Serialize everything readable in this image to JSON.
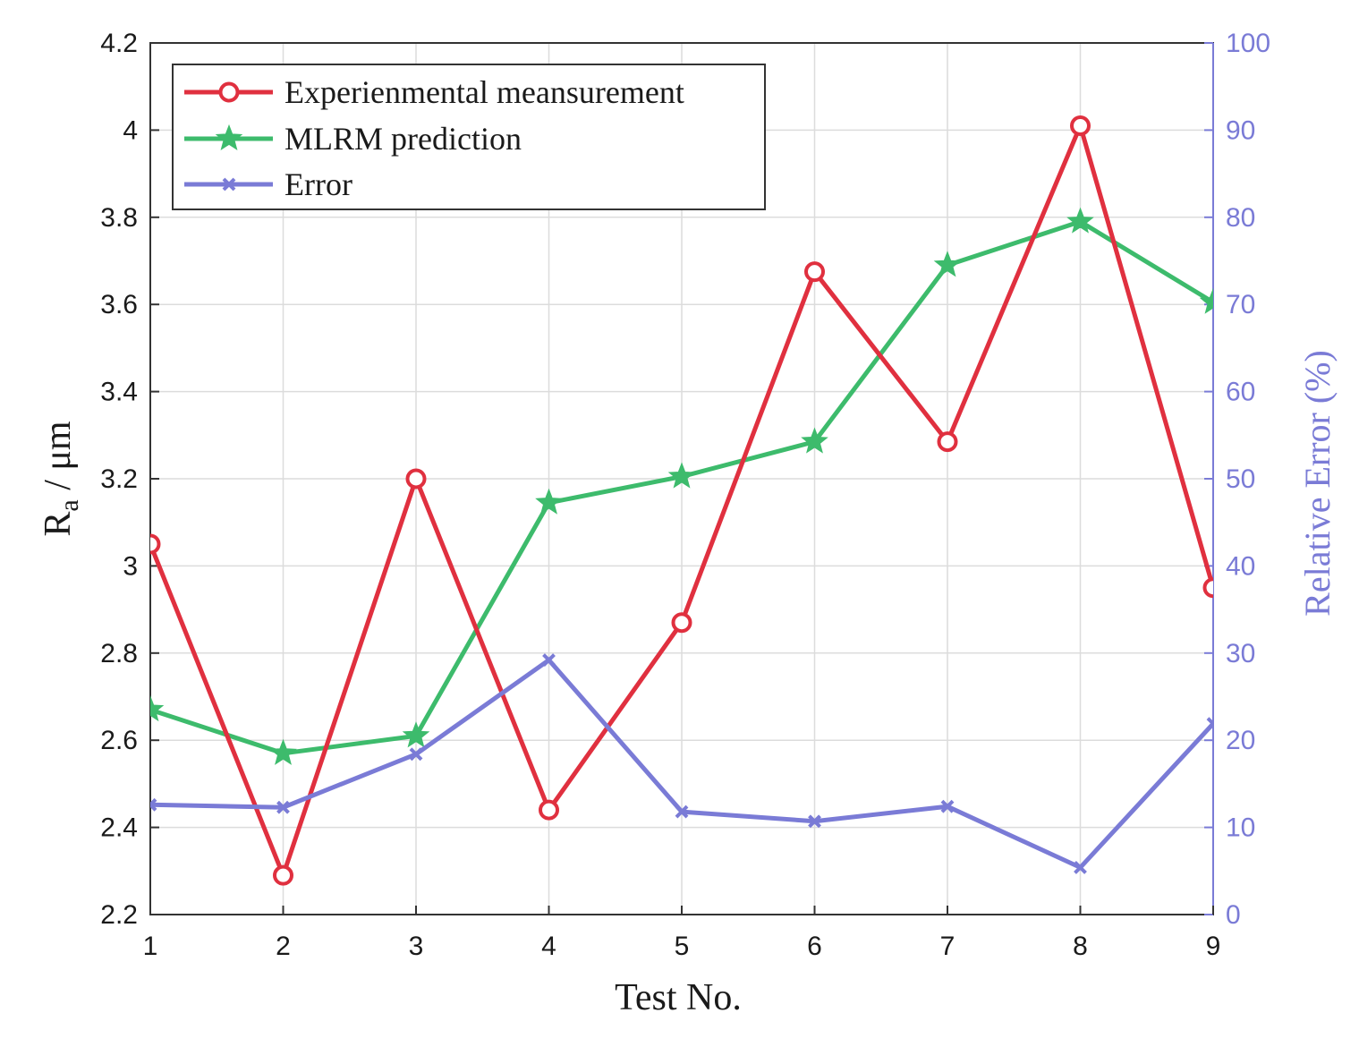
{
  "chart_data": {
    "type": "line",
    "x": [
      1,
      2,
      3,
      4,
      5,
      6,
      7,
      8,
      9
    ],
    "xlabel": "Test No.",
    "xlim": [
      1,
      9
    ],
    "xticks": [
      1,
      2,
      3,
      4,
      5,
      6,
      7,
      8,
      9
    ],
    "ylabel_main": "R",
    "ylabel_sub": "a",
    "ylabel_unit": " / μm",
    "ylim": [
      2.2,
      4.2
    ],
    "yticks": [
      2.2,
      2.4,
      2.6,
      2.8,
      3,
      3.2,
      3.4,
      3.6,
      3.8,
      4,
      4.2
    ],
    "y2label": "Relative Error (%)",
    "y2lim": [
      0,
      100
    ],
    "y2ticks": [
      0,
      10,
      20,
      30,
      40,
      50,
      60,
      70,
      80,
      90,
      100
    ],
    "grid": true,
    "legend_position": "top-left",
    "series": [
      {
        "name": "Experienmental meansurement",
        "axis": "left",
        "color": "#e0303f",
        "marker": "circle",
        "values": [
          3.05,
          2.29,
          3.2,
          2.44,
          2.87,
          3.675,
          3.285,
          4.01,
          2.95
        ]
      },
      {
        "name": "MLRM prediction",
        "axis": "left",
        "color": "#3dbb6c",
        "marker": "star",
        "values": [
          2.67,
          2.57,
          2.61,
          3.145,
          3.205,
          3.285,
          3.69,
          3.79,
          3.605
        ]
      },
      {
        "name": "Error",
        "axis": "right",
        "color": "#7a7bd6",
        "marker": "x",
        "values": [
          12.6,
          12.3,
          18.4,
          29.2,
          11.8,
          10.7,
          12.4,
          5.4,
          21.9
        ]
      }
    ]
  }
}
